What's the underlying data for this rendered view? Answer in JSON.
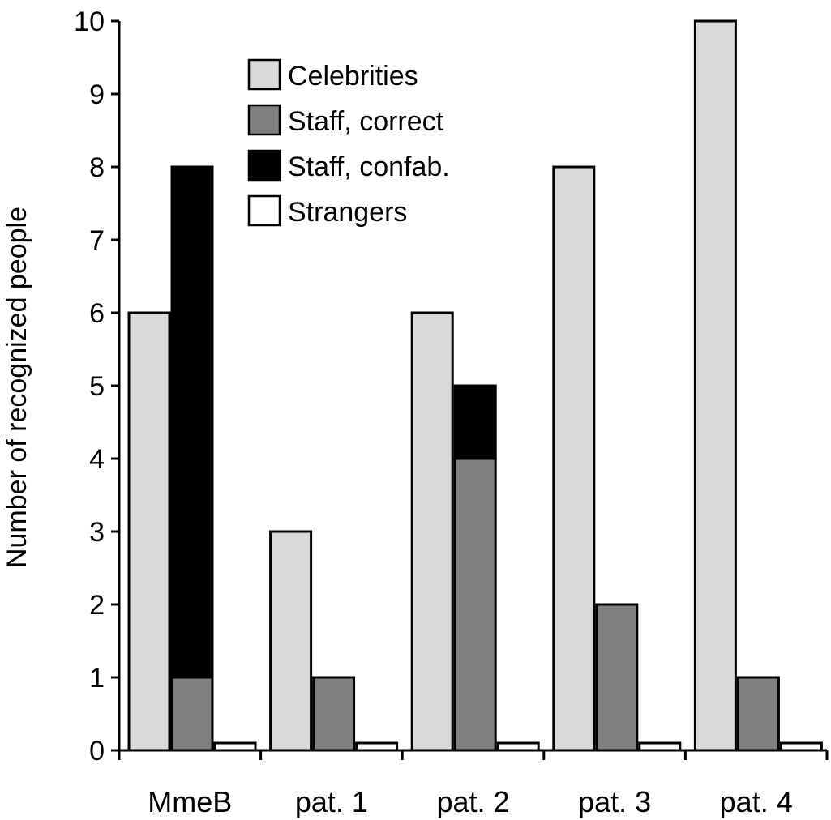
{
  "chart_data": {
    "type": "bar",
    "title": "",
    "xlabel": "",
    "ylabel": "Number of recognized people",
    "ylim": [
      0,
      10
    ],
    "yticks": [
      "0",
      "1",
      "2",
      "3",
      "4",
      "5",
      "6",
      "7",
      "8",
      "9",
      "10"
    ],
    "grid": false,
    "legend_position": "top-center",
    "categories": [
      "MmeB",
      "pat. 1",
      "pat. 2",
      "pat. 3",
      "pat. 4"
    ],
    "series": [
      {
        "name": "Celebrities",
        "color": "#d9d9d9",
        "values": [
          6,
          3,
          6,
          8,
          10
        ]
      },
      {
        "name": "Staff, correct",
        "color": "#808080",
        "values": [
          1,
          1,
          4,
          2,
          1
        ]
      },
      {
        "name": "Staff, confab.",
        "color": "#000000",
        "values": [
          7,
          0,
          1,
          0,
          0
        ],
        "stacked_on": "Staff, correct"
      },
      {
        "name": "Strangers",
        "color": "#ffffff",
        "values": [
          0.1,
          0.1,
          0.1,
          0.1,
          0.1
        ]
      }
    ]
  }
}
